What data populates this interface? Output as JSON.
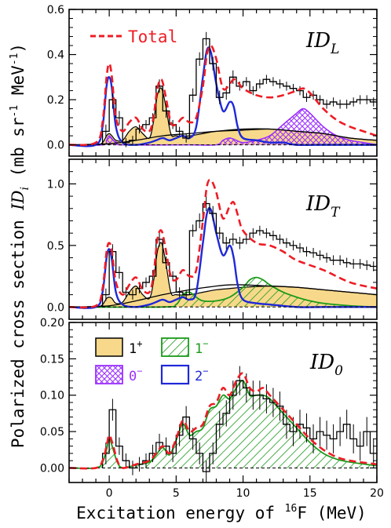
{
  "figure": {
    "ylabel_prefix": "Polarized cross section",
    "ylabel_symbol": "ID",
    "ylabel_subscript": "i",
    "ylabel_unit": "(mb sr",
    "ylabel_unit_exp": "-1",
    "ylabel_unit_tail": " MeV",
    "ylabel_unit_exp2": "-1",
    "ylabel_unit_close": ")",
    "xlabel_prefix": "Excitation energy of ",
    "xlabel_sup": "16",
    "xlabel_suffix": "F (MeV)"
  },
  "legend": {
    "total_label": "Total",
    "key_1plus_base": "1",
    "key_1plus_sup": "+",
    "key_1minus_base": "1",
    "key_1minus_sup": "−",
    "key_0minus_base": "0",
    "key_0minus_sup": "−",
    "key_2minus_base": "2",
    "key_2minus_sup": "−"
  },
  "colors": {
    "total": "#ee1c25",
    "one_plus": "#f8d98b",
    "one_minus": "#1a9a1a",
    "zero_minus": "#9b30ff",
    "two_minus": "#1f28d8",
    "data": "#000000"
  },
  "chart_data": [
    {
      "type": "line",
      "panel": "ID_L",
      "label_base": "ID",
      "label_sub": "L",
      "xlim": [
        -3,
        20
      ],
      "ylim": [
        -0.05,
        0.6
      ],
      "xticks": [
        0,
        5,
        10,
        15,
        20
      ],
      "yticks": [
        0.0,
        0.2,
        0.4,
        0.6
      ],
      "ytick_labels": [
        "0.0",
        "0.2",
        "0.4",
        "0.6"
      ],
      "data_histogram": {
        "x": [
          -0.25,
          0.25,
          0.75,
          1.25,
          1.75,
          2.25,
          2.75,
          3.25,
          3.75,
          4.25,
          4.75,
          5.25,
          5.75,
          6.25,
          6.75,
          7.25,
          7.75,
          8.25,
          8.75,
          9.25,
          9.75,
          10.25,
          10.75,
          11.25,
          11.75,
          12.25,
          12.75,
          13.25,
          13.75,
          14.25,
          14.75,
          15.25,
          15.75,
          16.25,
          16.75,
          17.25,
          17.75,
          18.25,
          18.75,
          19.25,
          19.75
        ],
        "y": [
          0.06,
          0.2,
          0.12,
          0.01,
          0.02,
          0.07,
          0.09,
          0.12,
          0.26,
          0.15,
          0.09,
          0.06,
          0.03,
          0.22,
          0.38,
          0.47,
          0.36,
          0.21,
          0.23,
          0.3,
          0.26,
          0.28,
          0.24,
          0.27,
          0.29,
          0.28,
          0.27,
          0.26,
          0.25,
          0.24,
          0.21,
          0.22,
          0.2,
          0.18,
          0.19,
          0.18,
          0.18,
          0.19,
          0.2,
          0.2,
          0.19
        ],
        "err": [
          0.03,
          0.04,
          0.03,
          0.02,
          0.02,
          0.02,
          0.02,
          0.02,
          0.03,
          0.03,
          0.02,
          0.02,
          0.02,
          0.03,
          0.03,
          0.03,
          0.03,
          0.03,
          0.03,
          0.03,
          0.02,
          0.02,
          0.02,
          0.02,
          0.02,
          0.02,
          0.02,
          0.02,
          0.02,
          0.02,
          0.02,
          0.02,
          0.02,
          0.02,
          0.02,
          0.02,
          0.02,
          0.02,
          0.02,
          0.02,
          0.02
        ]
      },
      "total": {
        "x": [
          -3,
          -1,
          -0.5,
          -0.2,
          0,
          0.2,
          0.5,
          1,
          1.5,
          2,
          2.5,
          3,
          3.3,
          3.6,
          3.9,
          4.2,
          4.6,
          5,
          5.5,
          6,
          6.5,
          7,
          7.3,
          7.6,
          8,
          8.5,
          9,
          9.3,
          9.6,
          10,
          11,
          12,
          13,
          14,
          14.5,
          15,
          16,
          17,
          18,
          19,
          20
        ],
        "y": [
          0,
          0.01,
          0.1,
          0.3,
          0.36,
          0.3,
          0.12,
          0.06,
          0.1,
          0.12,
          0.07,
          0.06,
          0.12,
          0.25,
          0.29,
          0.22,
          0.1,
          0.09,
          0.12,
          0.1,
          0.12,
          0.26,
          0.4,
          0.44,
          0.38,
          0.25,
          0.27,
          0.29,
          0.28,
          0.25,
          0.22,
          0.21,
          0.22,
          0.24,
          0.25,
          0.23,
          0.16,
          0.11,
          0.08,
          0.06,
          0.04
        ]
      },
      "one_plus": {
        "x": [
          -3,
          -1,
          -0.5,
          -0.2,
          0,
          0.2,
          0.5,
          1,
          1.5,
          2,
          2.5,
          3,
          3.3,
          3.6,
          3.9,
          4.2,
          4.6,
          5,
          6,
          7,
          8,
          10,
          12,
          14,
          16,
          18,
          20
        ],
        "y": [
          0,
          0,
          0.01,
          0.04,
          0.05,
          0.04,
          0.02,
          0.02,
          0.06,
          0.08,
          0.05,
          0.03,
          0.1,
          0.22,
          0.25,
          0.18,
          0.05,
          0.04,
          0.04,
          0.05,
          0.06,
          0.07,
          0.07,
          0.06,
          0.05,
          0.03,
          0.02
        ]
      },
      "zero_minus": {
        "x": [
          -3,
          -0.5,
          -0.2,
          0,
          0.3,
          0.6,
          1,
          6,
          8,
          8.5,
          9,
          9.5,
          10,
          11,
          12,
          13,
          14,
          14.5,
          15,
          16,
          17,
          18,
          19,
          20
        ],
        "y": [
          0,
          0,
          0.02,
          0.04,
          0.02,
          0.01,
          0,
          0,
          0,
          0.02,
          0.03,
          0.02,
          0.01,
          0.02,
          0.04,
          0.09,
          0.14,
          0.16,
          0.14,
          0.08,
          0.04,
          0.02,
          0.01,
          0
        ]
      },
      "two_minus": {
        "x": [
          -3,
          -1,
          -0.5,
          -0.2,
          0,
          0.2,
          0.5,
          1,
          2,
          3,
          3.5,
          4,
          4.5,
          5,
          5.5,
          6,
          6.5,
          7,
          7.3,
          7.6,
          8,
          8.5,
          9,
          9.3,
          9.6,
          10,
          11,
          12,
          13,
          14,
          16,
          18,
          20
        ],
        "y": [
          0,
          0,
          0.08,
          0.26,
          0.3,
          0.25,
          0.08,
          0.01,
          0,
          0.01,
          0.02,
          0.03,
          0.02,
          0.03,
          0.04,
          0.03,
          0.08,
          0.3,
          0.42,
          0.41,
          0.27,
          0.15,
          0.19,
          0.17,
          0.08,
          0.03,
          0.02,
          0.01,
          0.01,
          0,
          0,
          0,
          0
        ]
      },
      "envelope": {
        "x": [
          -3,
          0,
          2,
          4,
          6,
          8,
          10,
          12,
          14,
          16,
          18,
          20
        ],
        "y": [
          0,
          0.005,
          0.02,
          0.04,
          0.05,
          0.06,
          0.065,
          0.07,
          0.06,
          0.05,
          0.03,
          0.02
        ]
      }
    },
    {
      "type": "line",
      "panel": "ID_T",
      "label_base": "ID",
      "label_sub": "T",
      "xlim": [
        -3,
        20
      ],
      "ylim": [
        -0.1,
        1.2
      ],
      "xticks": [
        0,
        5,
        10,
        15,
        20
      ],
      "yticks": [
        0.0,
        0.5,
        1.0
      ],
      "ytick_labels": [
        "0.0",
        "0.5",
        "1.0"
      ],
      "data_histogram": {
        "x": [
          -0.25,
          0.25,
          0.75,
          1.25,
          1.75,
          2.25,
          2.75,
          3.25,
          3.75,
          4.25,
          4.75,
          5.25,
          5.75,
          6.25,
          6.75,
          7.25,
          7.75,
          8.25,
          8.75,
          9.25,
          9.75,
          10.25,
          10.75,
          11.25,
          11.75,
          12.25,
          12.75,
          13.25,
          13.75,
          14.25,
          14.75,
          15.25,
          15.75,
          16.25,
          16.75,
          17.25,
          17.75,
          18.25,
          18.75,
          19.25,
          19.75
        ],
        "y": [
          0.1,
          0.45,
          0.28,
          0.12,
          0.1,
          0.15,
          0.2,
          0.25,
          0.55,
          0.36,
          0.25,
          0.12,
          0.1,
          0.62,
          0.7,
          0.84,
          0.76,
          0.6,
          0.52,
          0.55,
          0.52,
          0.55,
          0.6,
          0.62,
          0.6,
          0.58,
          0.55,
          0.52,
          0.5,
          0.48,
          0.45,
          0.44,
          0.42,
          0.4,
          0.38,
          0.38,
          0.36,
          0.35,
          0.35,
          0.34,
          0.33
        ],
        "err": [
          0.05,
          0.06,
          0.05,
          0.04,
          0.04,
          0.04,
          0.04,
          0.05,
          0.06,
          0.05,
          0.04,
          0.04,
          0.04,
          0.05,
          0.06,
          0.06,
          0.06,
          0.05,
          0.05,
          0.05,
          0.05,
          0.04,
          0.04,
          0.04,
          0.04,
          0.04,
          0.04,
          0.04,
          0.04,
          0.04,
          0.04,
          0.04,
          0.04,
          0.04,
          0.04,
          0.04,
          0.04,
          0.04,
          0.04,
          0.04,
          0.04
        ]
      },
      "total": {
        "x": [
          -3,
          -1,
          -0.5,
          -0.2,
          0,
          0.2,
          0.5,
          1,
          1.5,
          2,
          2.5,
          3,
          3.3,
          3.6,
          3.9,
          4.2,
          4.6,
          5,
          5.5,
          6,
          6.5,
          7,
          7.3,
          7.6,
          8,
          8.5,
          9,
          9.3,
          9.6,
          10,
          11,
          12,
          13,
          14,
          16,
          18,
          20
        ],
        "y": [
          0,
          0.01,
          0.15,
          0.45,
          0.52,
          0.45,
          0.2,
          0.1,
          0.18,
          0.24,
          0.14,
          0.12,
          0.25,
          0.55,
          0.62,
          0.48,
          0.25,
          0.22,
          0.3,
          0.25,
          0.3,
          0.7,
          0.98,
          1.03,
          0.93,
          0.72,
          0.82,
          0.85,
          0.75,
          0.62,
          0.52,
          0.5,
          0.45,
          0.38,
          0.3,
          0.2,
          0.15
        ]
      },
      "one_plus": {
        "x": [
          -3,
          -1,
          -0.5,
          -0.2,
          0,
          0.2,
          0.5,
          1,
          1.5,
          2,
          2.5,
          3,
          3.3,
          3.6,
          3.9,
          4.2,
          4.6,
          5,
          6,
          7,
          8,
          9,
          10,
          12,
          14,
          16,
          18,
          20
        ],
        "y": [
          0,
          0,
          0.02,
          0.07,
          0.08,
          0.07,
          0.03,
          0.04,
          0.12,
          0.17,
          0.1,
          0.07,
          0.2,
          0.45,
          0.52,
          0.38,
          0.12,
          0.1,
          0.1,
          0.12,
          0.14,
          0.15,
          0.16,
          0.17,
          0.16,
          0.14,
          0.12,
          0.1
        ]
      },
      "one_minus": {
        "x": [
          -3,
          4,
          5,
          5.5,
          6,
          6.5,
          7,
          8,
          9,
          10,
          10.5,
          11,
          11.5,
          12,
          13,
          14,
          15,
          16,
          18,
          20
        ],
        "y": [
          0,
          0,
          0.02,
          0.1,
          0.12,
          0.08,
          0.05,
          0.05,
          0.08,
          0.16,
          0.22,
          0.24,
          0.22,
          0.18,
          0.12,
          0.08,
          0.05,
          0.03,
          0.01,
          0
        ]
      },
      "two_minus": {
        "x": [
          -3,
          -1,
          -0.5,
          -0.2,
          0,
          0.2,
          0.5,
          1,
          2,
          3,
          3.5,
          4,
          4.5,
          5,
          5.5,
          6,
          6.5,
          7,
          7.3,
          7.6,
          8,
          8.5,
          9,
          9.3,
          9.6,
          10,
          11,
          12,
          14,
          16,
          18,
          20
        ],
        "y": [
          0,
          0,
          0.12,
          0.4,
          0.47,
          0.38,
          0.12,
          0.02,
          0,
          0.02,
          0.04,
          0.06,
          0.04,
          0.06,
          0.08,
          0.06,
          0.12,
          0.52,
          0.76,
          0.79,
          0.6,
          0.42,
          0.5,
          0.4,
          0.18,
          0.06,
          0.03,
          0.02,
          0,
          0,
          0,
          0
        ]
      },
      "envelope": {
        "x": [
          -3,
          0,
          2,
          4,
          6,
          8,
          9,
          10,
          12,
          14,
          16,
          18,
          20
        ],
        "y": [
          0,
          0.01,
          0.05,
          0.1,
          0.14,
          0.17,
          0.18,
          0.18,
          0.17,
          0.16,
          0.14,
          0.12,
          0.1
        ]
      }
    },
    {
      "type": "line",
      "panel": "ID_0",
      "label_base": "ID",
      "label_sub": "0",
      "xlim": [
        -3,
        20
      ],
      "ylim": [
        -0.02,
        0.2
      ],
      "xticks": [
        0,
        5,
        10,
        15,
        20
      ],
      "xtick_labels": [
        "0",
        "5",
        "10",
        "15",
        "20"
      ],
      "yticks": [
        0.0,
        0.05,
        0.1,
        0.15,
        0.2
      ],
      "ytick_labels": [
        "0.00",
        "0.05",
        "0.10",
        "0.15",
        "0.20"
      ],
      "data_histogram": {
        "x": [
          -0.25,
          0.25,
          0.75,
          1.25,
          1.75,
          2.25,
          2.75,
          3.25,
          3.75,
          4.25,
          4.75,
          5.25,
          5.75,
          6.25,
          6.75,
          7.25,
          7.75,
          8.25,
          8.75,
          9.25,
          9.75,
          10.25,
          10.75,
          11.25,
          11.75,
          12.25,
          12.75,
          13.25,
          13.75,
          14.25,
          14.75,
          15.25,
          15.75,
          16.25,
          16.75,
          17.25,
          17.75,
          18.25,
          18.75,
          19.25,
          19.75
        ],
        "y": [
          0.02,
          0.08,
          0.03,
          0.01,
          0.0,
          0.005,
          0.01,
          0.02,
          0.035,
          0.03,
          0.02,
          0.045,
          0.07,
          0.04,
          0.02,
          -0.005,
          0.02,
          0.06,
          0.075,
          0.1,
          0.12,
          0.11,
          0.1,
          0.1,
          0.095,
          0.09,
          0.085,
          0.06,
          0.05,
          0.06,
          0.055,
          0.04,
          0.05,
          0.045,
          0.04,
          0.05,
          0.06,
          0.04,
          0.03,
          0.05,
          0.02
        ],
        "err": [
          0.015,
          0.015,
          0.012,
          0.01,
          0.01,
          0.01,
          0.01,
          0.012,
          0.012,
          0.012,
          0.012,
          0.015,
          0.015,
          0.015,
          0.015,
          0.015,
          0.015,
          0.018,
          0.018,
          0.02,
          0.02,
          0.02,
          0.02,
          0.02,
          0.02,
          0.02,
          0.02,
          0.02,
          0.02,
          0.02,
          0.02,
          0.02,
          0.02,
          0.02,
          0.02,
          0.02,
          0.02,
          0.02,
          0.02,
          0.02,
          0.02
        ]
      },
      "total": {
        "x": [
          -3,
          -1,
          -0.5,
          -0.2,
          0,
          0.3,
          0.6,
          1,
          2,
          3,
          3.5,
          4,
          4.5,
          5,
          5.5,
          6,
          6.5,
          7,
          7.5,
          8,
          8.5,
          9,
          9.5,
          10,
          10.5,
          11,
          11.5,
          12,
          13,
          14,
          15,
          16,
          17,
          18,
          20
        ],
        "y": [
          0,
          0,
          0.01,
          0.03,
          0.045,
          0.03,
          0.01,
          0,
          0.005,
          0.01,
          0.02,
          0.03,
          0.02,
          0.04,
          0.065,
          0.05,
          0.055,
          0.06,
          0.085,
          0.09,
          0.11,
          0.1,
          0.12,
          0.13,
          0.11,
          0.105,
          0.11,
          0.1,
          0.08,
          0.06,
          0.04,
          0.025,
          0.015,
          0.01,
          0.005
        ]
      },
      "one_minus": {
        "x": [
          -3,
          -1,
          -0.5,
          -0.2,
          0,
          0.3,
          0.6,
          1,
          2,
          3,
          3.5,
          4,
          4.5,
          5,
          5.5,
          6,
          6.5,
          7,
          7.5,
          8,
          8.5,
          9,
          9.5,
          10,
          10.5,
          11,
          11.5,
          12,
          13,
          14,
          15,
          16,
          17,
          18,
          20
        ],
        "y": [
          0,
          0,
          0.008,
          0.025,
          0.04,
          0.025,
          0.008,
          0,
          0.004,
          0.008,
          0.018,
          0.028,
          0.018,
          0.038,
          0.06,
          0.045,
          0.05,
          0.055,
          0.08,
          0.085,
          0.1,
          0.095,
          0.11,
          0.12,
          0.1,
          0.1,
          0.1,
          0.095,
          0.075,
          0.055,
          0.035,
          0.02,
          0.012,
          0.008,
          0.003
        ]
      }
    }
  ]
}
